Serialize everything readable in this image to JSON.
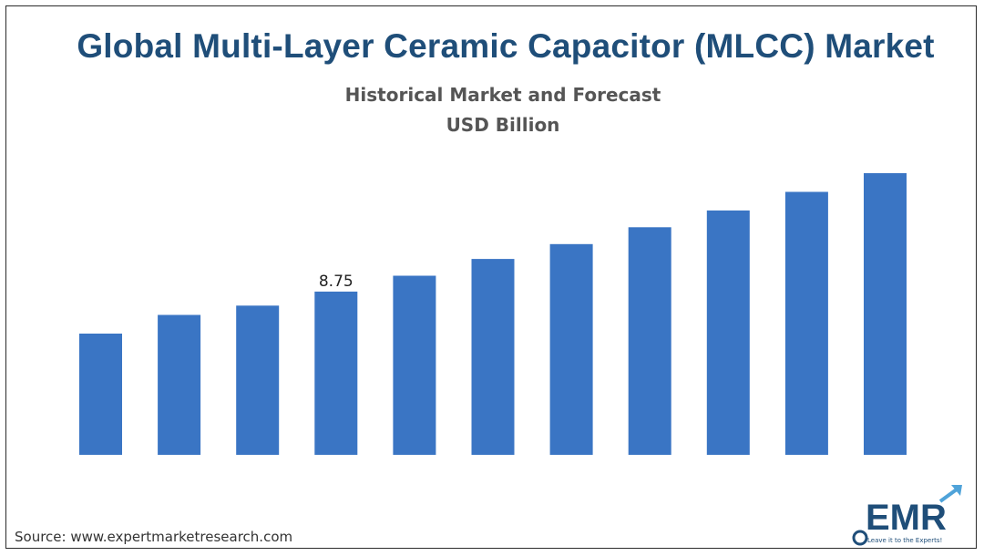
{
  "chart_data": {
    "type": "bar",
    "title": "Global Multi-Layer Ceramic Capacitor (MLCC) Market",
    "subtitle": [
      "Historical Market and Forecast",
      "USD Billion"
    ],
    "values": [
      6.5,
      7.5,
      8.0,
      8.75,
      9.6,
      10.5,
      11.3,
      12.2,
      13.1,
      14.1,
      15.1
    ],
    "data_labels": [
      {
        "index": 3,
        "text": "8.75"
      }
    ],
    "xlabel": "",
    "ylabel": "",
    "ylim": [
      0,
      15.1
    ],
    "grid": false,
    "bar_color": "#3a75c4"
  },
  "footer": {
    "source": "Source: www.expertmarketresearch.com"
  },
  "logo": {
    "text": "EMR",
    "tagline": "Leave it to the Experts!",
    "color": "#1f4e79",
    "accent": "#4fa3d9"
  }
}
